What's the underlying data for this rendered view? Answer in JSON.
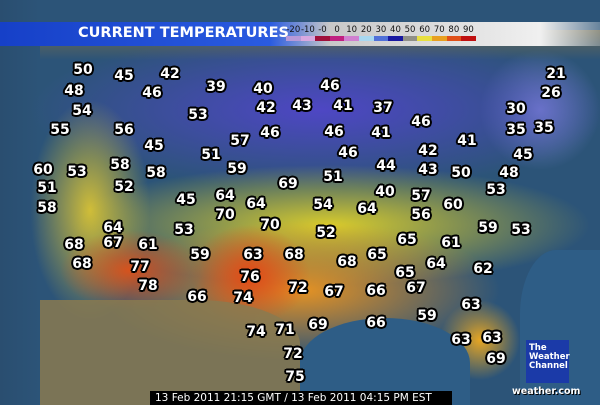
{
  "title": "CURRENT TEMPERATURES",
  "legend": {
    "labels": [
      "-20",
      "-10",
      "-0",
      "0",
      "10",
      "20",
      "30",
      "40",
      "50",
      "60",
      "70",
      "80",
      "90"
    ],
    "colors": [
      "#b89ad8",
      "#d8a8e0",
      "#a0103a",
      "#c02080",
      "#d080d0",
      "#a8d8f0",
      "#5070d8",
      "#1818a0",
      "#909088",
      "#e8e040",
      "#e8a020",
      "#e05018",
      "#c01010"
    ]
  },
  "temperatures": [
    50,
    45,
    42,
    39,
    40,
    46,
    21,
    48,
    46,
    42,
    43,
    41,
    37,
    26,
    54,
    53,
    46,
    30,
    55,
    56,
    57,
    46,
    46,
    41,
    35,
    35,
    45,
    41,
    42,
    51,
    59,
    46,
    45,
    60,
    53,
    58,
    69,
    44,
    43,
    50,
    48,
    51,
    52,
    58,
    64,
    51,
    40,
    57,
    53,
    58,
    45,
    70,
    64,
    54,
    64,
    60,
    56,
    64,
    53,
    70,
    52,
    59,
    53,
    68,
    67,
    61,
    59,
    63,
    68,
    65,
    61,
    68,
    77,
    76,
    68,
    65,
    65,
    64,
    62,
    78,
    66,
    74,
    72,
    67,
    66,
    67,
    63,
    59,
    74,
    71,
    69,
    66,
    63,
    63,
    72,
    69,
    75
  ],
  "logo": {
    "lines": [
      "The",
      "Weather",
      "Channel"
    ],
    "site": "weather.com"
  },
  "timestamp": "13 Feb 2011 21:15 GMT / 13 Feb 2011 04:15 PM EST"
}
